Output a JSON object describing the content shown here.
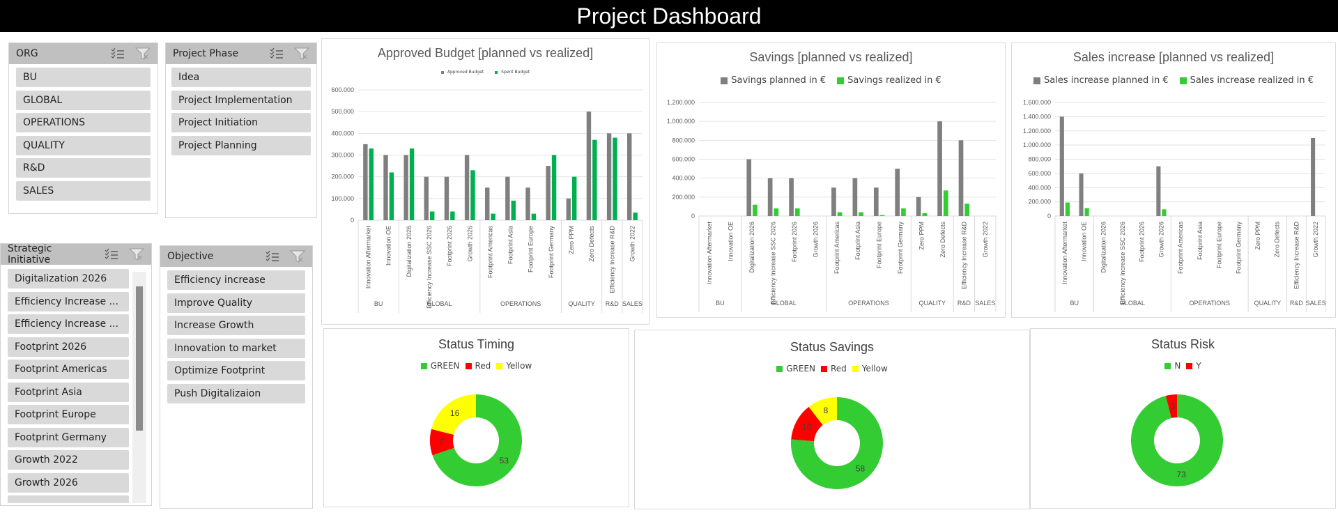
{
  "header": {
    "title": "Project Dashboard"
  },
  "slicers": {
    "org": {
      "title": "ORG",
      "items": [
        "BU",
        "GLOBAL",
        "OPERATIONS",
        "QUALITY",
        "R&D",
        "SALES"
      ]
    },
    "phase": {
      "title": "Project Phase",
      "items": [
        "Idea",
        "Project Implementation",
        "Project Initiation",
        "Project Planning"
      ]
    },
    "initiative": {
      "title": "Strategic Initiative",
      "items": [
        "Digitalization 2026",
        "Efficiency Increase ...",
        "Efficiency Increase ...",
        "Footprint 2026",
        "Footprint Americas",
        "Footprint Asia",
        "Footprint Europe",
        "Footprint Germany",
        "Growth 2022",
        "Growth 2026"
      ]
    },
    "objective": {
      "title": "Objective",
      "items": [
        "Efficiency increase",
        "Improve Quality",
        "Increase Growth",
        "Innovation to market",
        "Optimize Footprint",
        "Push Digitalizaion"
      ]
    },
    "icons": {
      "multiselect": "multi-select-icon",
      "clear_filter": "clear-filter-icon"
    }
  },
  "colors": {
    "planned": "#7f7f7f",
    "realized_budget": "#00b050",
    "realized": "#33cc33",
    "green": "#33cc33",
    "red": "#ff0000",
    "yellow": "#ffff00"
  },
  "chart_data": [
    {
      "id": "budget",
      "type": "bar",
      "title": "Approved Budget [planned vs realized]",
      "groups": [
        {
          "name": "BU",
          "categories": [
            "Innovation Aftermarket",
            "Innovation OE"
          ]
        },
        {
          "name": "GLOBAL",
          "categories": [
            "Digitalization 2026",
            "Efficiency Increase SSC 2026",
            "Footprint 2026",
            "Growth 2026"
          ]
        },
        {
          "name": "OPERATIONS",
          "categories": [
            "Footprint Americas",
            "Footprint Asia",
            "Footprint Europe",
            "Footprint Germany"
          ]
        },
        {
          "name": "QUALITY",
          "categories": [
            "Zero PPM",
            "Zero Defects"
          ]
        },
        {
          "name": "R&D",
          "categories": [
            "Efficiency Increase R&D"
          ]
        },
        {
          "name": "SALES",
          "categories": [
            "Growth 2022"
          ]
        }
      ],
      "series": [
        {
          "name": "Approved Budget",
          "values": [
            350000,
            300000,
            300000,
            200000,
            200000,
            300000,
            150000,
            200000,
            150000,
            250000,
            100000,
            500000,
            400000,
            400000
          ]
        },
        {
          "name": "Spent Budget",
          "values": [
            330000,
            220000,
            330000,
            40000,
            40000,
            230000,
            30000,
            90000,
            30000,
            300000,
            200000,
            370000,
            380000,
            35000
          ]
        }
      ],
      "ylim": [
        0,
        600000
      ],
      "yticks": [
        "0",
        "100.000",
        "200.000",
        "300.000",
        "400.000",
        "500.000",
        "600.000"
      ],
      "grid": true,
      "legend": "top"
    },
    {
      "id": "savings",
      "type": "bar",
      "title": "Savings [planned vs realized]",
      "groups": [
        {
          "name": "BU",
          "categories": [
            "Innovation Aftermarket",
            "Innovation OE"
          ]
        },
        {
          "name": "GLOBAL",
          "categories": [
            "Digitalization 2026",
            "Efficiency Increase SSC 2026",
            "Footprint 2026",
            "Growth 2026"
          ]
        },
        {
          "name": "OPERATIONS",
          "categories": [
            "Footprint Americas",
            "Footprint Asia",
            "Footprint Europe",
            "Footprint Germany"
          ]
        },
        {
          "name": "QUALITY",
          "categories": [
            "Zero PPM",
            "Zero Defects"
          ]
        },
        {
          "name": "R&D",
          "categories": [
            "Efficiency Increase R&D"
          ]
        },
        {
          "name": "SALES",
          "categories": [
            "Growth 2022"
          ]
        }
      ],
      "series": [
        {
          "name": "Savings planned in €",
          "values": [
            0,
            0,
            600000,
            400000,
            400000,
            0,
            300000,
            400000,
            300000,
            500000,
            200000,
            1000000,
            800000,
            0
          ]
        },
        {
          "name": "Savings realized in €",
          "values": [
            0,
            0,
            120000,
            80000,
            80000,
            0,
            40000,
            40000,
            10000,
            80000,
            30000,
            270000,
            130000,
            0
          ]
        }
      ],
      "ylim": [
        0,
        1200000
      ],
      "yticks": [
        "0",
        "200.000",
        "400.000",
        "600.000",
        "800.000",
        "1.000.000",
        "1.200.000"
      ],
      "grid": true,
      "legend": "top"
    },
    {
      "id": "sales",
      "type": "bar",
      "title": "Sales increase [planned vs realized]",
      "groups": [
        {
          "name": "BU",
          "categories": [
            "Innovation Aftermarket",
            "Innovation OE"
          ]
        },
        {
          "name": "GLOBAL",
          "categories": [
            "Digitalization 2026",
            "Efficiency Increase SSC 2026",
            "Footprint 2026",
            "Growth 2026"
          ]
        },
        {
          "name": "OPERATIONS",
          "categories": [
            "Footprint Americas",
            "Footprint Asia",
            "Footprint Europe",
            "Footprint Germany"
          ]
        },
        {
          "name": "QUALITY",
          "categories": [
            "Zero PPM",
            "Zero Defects"
          ]
        },
        {
          "name": "R&D",
          "categories": [
            "Efficiency Increase R&D"
          ]
        },
        {
          "name": "SALES",
          "categories": [
            "Growth 2022"
          ]
        }
      ],
      "series": [
        {
          "name": "Sales increase planned in €",
          "values": [
            1400000,
            600000,
            0,
            0,
            0,
            700000,
            0,
            0,
            0,
            0,
            0,
            0,
            0,
            1100000
          ]
        },
        {
          "name": "Sales increase realized in €",
          "values": [
            190000,
            110000,
            0,
            0,
            0,
            95000,
            0,
            0,
            0,
            0,
            0,
            0,
            0,
            0
          ]
        }
      ],
      "ylim": [
        0,
        1600000
      ],
      "yticks": [
        "0",
        "200.000",
        "400.000",
        "600.000",
        "800.000",
        "1.000.000",
        "1.200.000",
        "1.400.000",
        "1.600.000"
      ],
      "grid": true,
      "legend": "top"
    },
    {
      "id": "timing",
      "type": "pie",
      "title": "Status Timing",
      "labels": [
        "GREEN",
        "Red",
        "Yellow"
      ],
      "values": [
        53,
        7,
        16
      ],
      "legend": "top"
    },
    {
      "id": "status_savings",
      "type": "pie",
      "title": "Status Savings",
      "labels": [
        "GREEN",
        "Red",
        "Yellow"
      ],
      "values": [
        58,
        10,
        8
      ],
      "legend": "top"
    },
    {
      "id": "risk",
      "type": "pie",
      "title": "Status Risk",
      "labels": [
        "N",
        "Y"
      ],
      "values": [
        73,
        3
      ],
      "legend": "top"
    }
  ]
}
